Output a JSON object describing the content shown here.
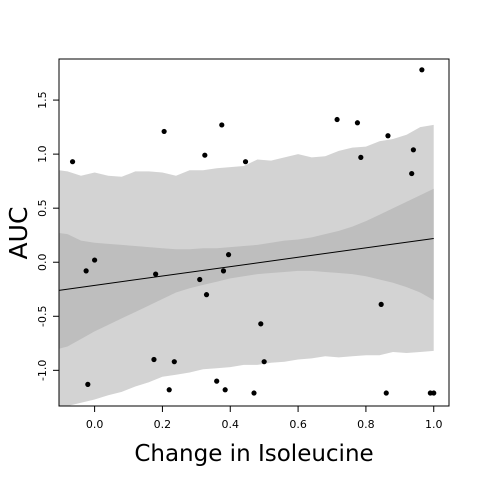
{
  "chart_data": {
    "type": "scatter",
    "title": "",
    "xlabel": "Change in Isoleucine",
    "ylabel": "AUC",
    "xlim": [
      -0.105,
      1.045
    ],
    "ylim": [
      -1.33,
      1.88
    ],
    "x_ticks": [
      0.0,
      0.2,
      0.4,
      0.6,
      0.8,
      1.0
    ],
    "x_tick_labels": [
      "0.0",
      "0.2",
      "0.4",
      "0.6",
      "0.8",
      "1.0"
    ],
    "y_ticks": [
      -1.0,
      -0.5,
      0.0,
      0.5,
      1.0,
      1.5
    ],
    "y_tick_labels": [
      "-1.0",
      "-0.5",
      "0.0",
      "0.5",
      "1.0",
      "1.5"
    ],
    "grid": false,
    "points": [
      {
        "x": -0.065,
        "y": 0.93
      },
      {
        "x": -0.025,
        "y": -0.08
      },
      {
        "x": -0.02,
        "y": -1.13
      },
      {
        "x": 0.0,
        "y": 0.02
      },
      {
        "x": 0.175,
        "y": -0.9
      },
      {
        "x": 0.18,
        "y": -0.11
      },
      {
        "x": 0.205,
        "y": 1.21
      },
      {
        "x": 0.22,
        "y": -1.18
      },
      {
        "x": 0.235,
        "y": -0.92
      },
      {
        "x": 0.31,
        "y": -0.16
      },
      {
        "x": 0.325,
        "y": 0.99
      },
      {
        "x": 0.33,
        "y": -0.3
      },
      {
        "x": 0.36,
        "y": -1.1
      },
      {
        "x": 0.375,
        "y": 1.27
      },
      {
        "x": 0.38,
        "y": -0.08
      },
      {
        "x": 0.385,
        "y": -1.18
      },
      {
        "x": 0.395,
        "y": 0.07
      },
      {
        "x": 0.445,
        "y": 0.93
      },
      {
        "x": 0.47,
        "y": -1.21
      },
      {
        "x": 0.49,
        "y": -0.57
      },
      {
        "x": 0.5,
        "y": -0.92
      },
      {
        "x": 0.715,
        "y": 1.32
      },
      {
        "x": 0.775,
        "y": 1.29
      },
      {
        "x": 0.785,
        "y": 0.97
      },
      {
        "x": 0.845,
        "y": -0.39
      },
      {
        "x": 0.86,
        "y": -1.21
      },
      {
        "x": 0.865,
        "y": 1.17
      },
      {
        "x": 0.935,
        "y": 0.82
      },
      {
        "x": 0.94,
        "y": 1.04
      },
      {
        "x": 0.965,
        "y": 1.78
      },
      {
        "x": 0.99,
        "y": -1.21
      },
      {
        "x": 1.0,
        "y": -1.21
      }
    ],
    "trend_line": {
      "x": [
        -0.105,
        1.0
      ],
      "y": [
        -0.26,
        0.22
      ]
    },
    "outer_band": {
      "x": [
        -0.105,
        -0.08,
        -0.04,
        0.0,
        0.04,
        0.08,
        0.12,
        0.16,
        0.2,
        0.24,
        0.28,
        0.32,
        0.36,
        0.4,
        0.44,
        0.48,
        0.52,
        0.56,
        0.6,
        0.64,
        0.68,
        0.72,
        0.76,
        0.8,
        0.84,
        0.88,
        0.92,
        0.96,
        1.0
      ],
      "upper": [
        0.85,
        0.84,
        0.8,
        0.83,
        0.8,
        0.79,
        0.84,
        0.84,
        0.83,
        0.8,
        0.85,
        0.85,
        0.87,
        0.88,
        0.89,
        0.95,
        0.94,
        0.97,
        1.0,
        0.97,
        0.98,
        1.03,
        1.06,
        1.07,
        1.12,
        1.14,
        1.18,
        1.25,
        1.27
      ],
      "lower": [
        -1.33,
        -1.33,
        -1.3,
        -1.27,
        -1.23,
        -1.2,
        -1.15,
        -1.11,
        -1.06,
        -1.04,
        -1.02,
        -0.99,
        -0.98,
        -0.97,
        -0.95,
        -0.95,
        -0.93,
        -0.92,
        -0.9,
        -0.89,
        -0.87,
        -0.88,
        -0.87,
        -0.86,
        -0.86,
        -0.83,
        -0.84,
        -0.83,
        -0.82
      ]
    },
    "inner_band": {
      "x": [
        -0.105,
        -0.08,
        -0.04,
        0.0,
        0.04,
        0.08,
        0.12,
        0.16,
        0.2,
        0.24,
        0.28,
        0.32,
        0.36,
        0.4,
        0.44,
        0.48,
        0.52,
        0.56,
        0.6,
        0.64,
        0.68,
        0.72,
        0.76,
        0.8,
        0.84,
        0.88,
        0.92,
        0.96,
        1.0
      ],
      "upper": [
        0.27,
        0.26,
        0.2,
        0.18,
        0.17,
        0.16,
        0.15,
        0.14,
        0.13,
        0.12,
        0.12,
        0.13,
        0.13,
        0.14,
        0.15,
        0.16,
        0.18,
        0.2,
        0.21,
        0.23,
        0.26,
        0.29,
        0.33,
        0.38,
        0.44,
        0.5,
        0.56,
        0.62,
        0.68
      ],
      "lower": [
        -0.8,
        -0.78,
        -0.71,
        -0.64,
        -0.58,
        -0.52,
        -0.46,
        -0.4,
        -0.34,
        -0.28,
        -0.24,
        -0.21,
        -0.18,
        -0.15,
        -0.13,
        -0.11,
        -0.1,
        -0.09,
        -0.08,
        -0.08,
        -0.09,
        -0.1,
        -0.11,
        -0.13,
        -0.16,
        -0.19,
        -0.23,
        -0.28,
        -0.35
      ]
    },
    "colors": {
      "outer_band": "#d3d3d3",
      "inner_band": "#bebebe",
      "points": "#000000",
      "line": "#000000",
      "frame": "#000000"
    }
  }
}
